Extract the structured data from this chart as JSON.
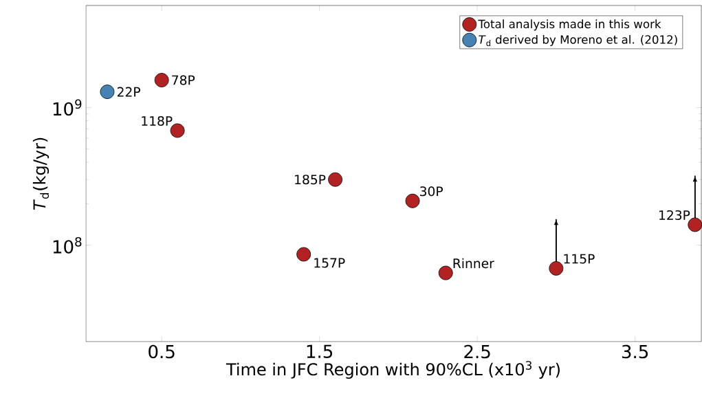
{
  "chart_data": {
    "type": "scatter",
    "xlabel": "Time in JFC Region with 90%CL (x10$^{3}$ yr)",
    "ylabel": "*T*$_{d}$(kg/yr)",
    "xlim": [
      0.02,
      3.92
    ],
    "ylim": [
      20000000.0,
      5500000000.0
    ],
    "log": "y",
    "xticks": [
      0.5,
      1.5,
      2.5,
      3.5
    ],
    "yticks": [
      {
        "value": 100000000.0,
        "label": "10$^{8}$"
      },
      {
        "value": 1000000000.0,
        "label": "10$^{9}$"
      }
    ],
    "legend": "top right",
    "series": [
      {
        "name": "Total analysis made in this work",
        "color": "#b22222",
        "x": [
          0.5,
          0.6,
          1.6,
          2.09,
          1.4,
          2.3,
          3.0,
          3.88
        ],
        "values": [
          1580000000.0,
          680000000.0,
          300000000.0,
          210000000.0,
          86000000.0,
          63000000.0,
          68000000.0,
          141000000.0
        ],
        "errors": [
          null,
          null,
          null,
          null,
          null,
          null,
          [
            68000000.0,
            155000000.0
          ],
          [
            141000000.0,
            320000000.0
          ]
        ]
      },
      {
        "name": "*T*$_{d}$ derived by Moreno et al. (2012)",
        "color": "#4682b4",
        "x": [
          0.155
        ],
        "values": [
          1300000000.0
        ]
      }
    ],
    "annotations": [
      {
        "text": "22P",
        "x": 0.155,
        "y": 1300000000.0
      },
      {
        "text": "78P",
        "x": 0.5,
        "y": 1580000000.0
      },
      {
        "text": "118P",
        "x": 0.6,
        "y": 680000000.0
      },
      {
        "text": "185P",
        "x": 1.6,
        "y": 300000000.0
      },
      {
        "text": "30P",
        "x": 2.09,
        "y": 210000000.0
      },
      {
        "text": "157P",
        "x": 1.4,
        "y": 86000000.0
      },
      {
        "text": "Rinner",
        "x": 2.3,
        "y": 63000000.0
      },
      {
        "text": "115P",
        "x": 3.0,
        "y": 68000000.0
      },
      {
        "text": "123P",
        "x": 3.88,
        "y": 141000000.0
      }
    ]
  }
}
